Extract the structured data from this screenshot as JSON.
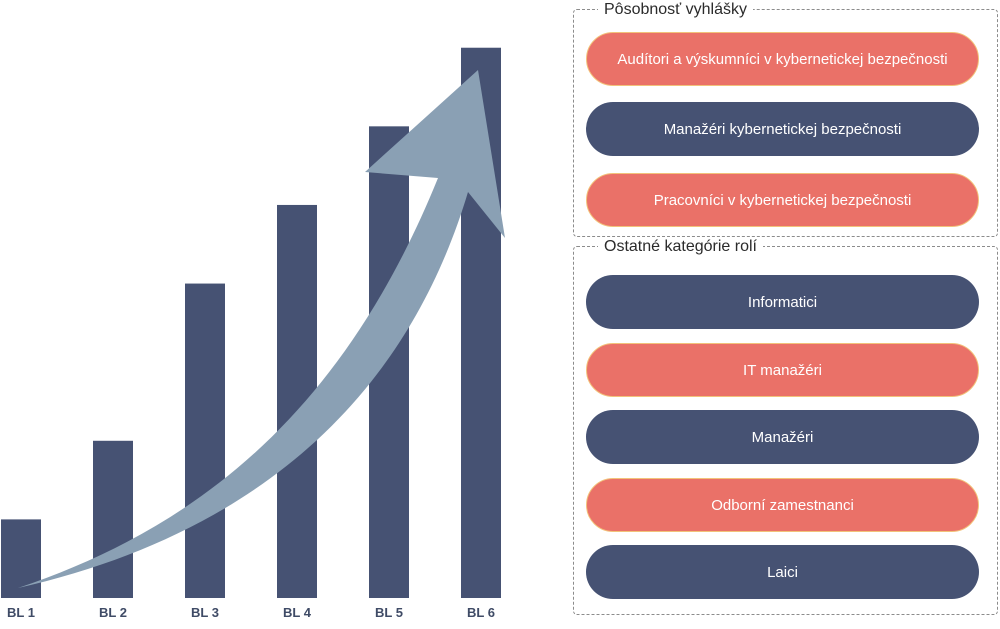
{
  "colors": {
    "bar": "#465273",
    "arrow": "#8aa0b4",
    "pill_red": "#ea7168",
    "pill_red_border": "#f2c27a",
    "pill_blue": "#465273"
  },
  "chart_data": {
    "type": "bar",
    "categories": [
      "BL 1",
      "BL 2",
      "BL 3",
      "BL 4",
      "BL 5",
      "BL 6"
    ],
    "values": [
      1,
      2,
      4,
      5,
      6,
      7
    ],
    "ylim": [
      0,
      7.2
    ],
    "grid": false,
    "trend_arrow": "rising"
  },
  "groups": [
    {
      "title": "Pôsobnosť vyhlášky",
      "items": [
        {
          "label": "Audítori a výskumníci v kybernetickej bezpečnosti",
          "color": "red"
        },
        {
          "label": "Manažéri kybernetickej bezpečnosti",
          "color": "blue"
        },
        {
          "label": "Pracovníci v kybernetickej bezpečnosti",
          "color": "red"
        }
      ]
    },
    {
      "title": "Ostatné kategórie rolí",
      "items": [
        {
          "label": "Informatici",
          "color": "blue"
        },
        {
          "label": "IT manažéri",
          "color": "red"
        },
        {
          "label": "Manažéri",
          "color": "blue"
        },
        {
          "label": "Odborní zamestnanci",
          "color": "red"
        },
        {
          "label": "Laici",
          "color": "blue"
        }
      ]
    }
  ]
}
